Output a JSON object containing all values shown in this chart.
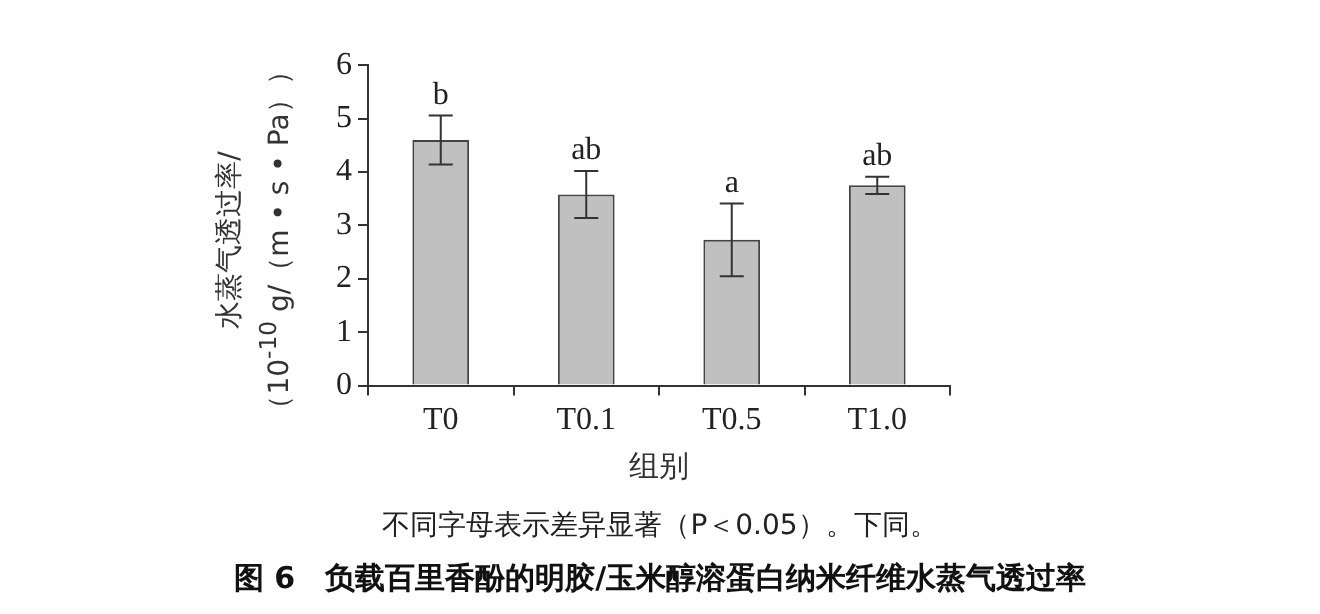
{
  "chart_data": {
    "type": "bar",
    "title": "图 6　负载百里香酚的明胶/玉米醇溶蛋白纳米纤维水蒸气透过率",
    "xlabel": "组别",
    "ylabel": "水蒸气透过率/\n（10$^{-10}$ g/（m • s • Pa））",
    "categories": [
      "T0",
      "T0.1",
      "T0.5",
      "T1.0"
    ],
    "values": [
      4.6,
      3.58,
      2.73,
      3.75
    ],
    "errors": [
      0.46,
      0.44,
      0.68,
      0.16
    ],
    "color": "#c0c0c0",
    "ylim": [
      0,
      6
    ],
    "yticks": [
      0,
      1,
      2,
      3,
      4,
      5,
      6
    ],
    "grid": false,
    "annotations": [
      {
        "text": "b",
        "x": "T0",
        "y": 5.06
      },
      {
        "text": "ab",
        "x": "T0.1",
        "y": 4.02
      },
      {
        "text": "a",
        "x": "T0.5",
        "y": 3.41
      },
      {
        "text": "ab",
        "x": "T1.0",
        "y": 3.91
      },
      "不同字母表示差异显著（P＜0.05）。下同。"
    ]
  }
}
